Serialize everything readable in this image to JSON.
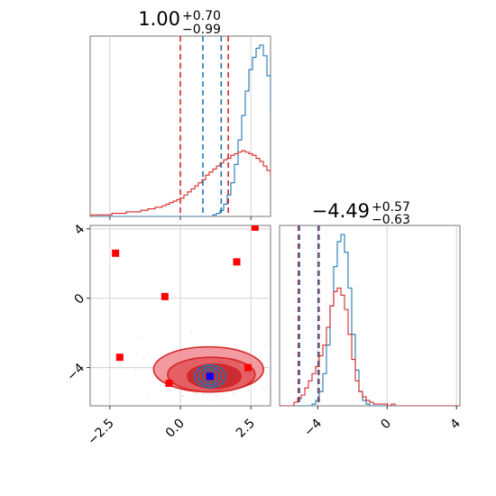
{
  "chart_data": [
    {
      "type": "histogram",
      "panel": "marginal-x",
      "title_base": "1.00",
      "title_plus": "+0.70",
      "title_minus": "−0.99",
      "xlim": [
        -3.2,
        3.2
      ],
      "grid": true,
      "bins": {
        "start": -3.2,
        "width": 0.128
      },
      "series": [
        {
          "color": "#1f77b4",
          "counts": [
            0,
            0,
            0,
            0,
            0,
            0,
            0,
            0,
            0,
            0,
            0,
            0,
            0,
            0,
            0,
            0,
            0,
            0,
            0,
            0,
            0,
            0,
            0,
            0,
            0,
            0,
            0,
            0,
            0,
            0,
            0,
            0,
            0,
            0,
            1,
            2,
            4,
            8,
            14,
            22,
            34,
            50,
            66,
            82,
            96,
            104,
            110,
            112,
            105,
            92,
            70,
            48,
            30,
            16,
            8,
            4,
            2,
            1,
            0,
            0,
            0,
            0,
            0,
            0,
            0,
            0,
            0,
            0,
            0,
            0,
            0,
            0,
            0,
            0,
            0,
            0,
            0,
            0,
            0,
            0,
            0,
            0,
            0,
            0,
            0,
            0,
            0,
            0,
            0,
            0,
            0,
            0,
            0,
            0,
            0,
            0,
            0,
            0,
            0,
            0
          ]
        },
        {
          "color": "#d62728",
          "counts": [
            1,
            1,
            1,
            1,
            1,
            1,
            2,
            2,
            2,
            2,
            3,
            3,
            3,
            3,
            4,
            4,
            5,
            5,
            6,
            6,
            7,
            8,
            9,
            10,
            11,
            12,
            14,
            16,
            18,
            20,
            22,
            24,
            27,
            29,
            31,
            33,
            35,
            37,
            38,
            40,
            41,
            42,
            43,
            42,
            41,
            40,
            38,
            36,
            33,
            30,
            26,
            22,
            18,
            14,
            11,
            8,
            6,
            5,
            4,
            3,
            2,
            2,
            2,
            1,
            1,
            1,
            1,
            0,
            0,
            0,
            0,
            0,
            0,
            0,
            0,
            0,
            0,
            0,
            0,
            0,
            0,
            0,
            0,
            0,
            0,
            0,
            0,
            0,
            0,
            0,
            0,
            0,
            0,
            0,
            0,
            0,
            0,
            0,
            0,
            0
          ]
        }
      ],
      "quantile_lines": [
        {
          "value": 0.0,
          "color": "#d62728"
        },
        {
          "value": 1.7,
          "color": "#d62728"
        },
        {
          "value": 0.8,
          "color": "#1f77b4"
        },
        {
          "value": 1.45,
          "color": "#1f77b4"
        }
      ]
    },
    {
      "type": "contour-scatter",
      "panel": "joint",
      "xlim": [
        -3.2,
        3.2
      ],
      "ylim": [
        -6.2,
        4.2
      ],
      "grid": true,
      "xticks": [
        "−2.5",
        "0.0",
        "2.5"
      ],
      "yticks": [
        "−4",
        "0",
        "4"
      ],
      "xtick_values": [
        -2.5,
        0.0,
        2.5
      ],
      "ytick_values": [
        -4,
        0,
        4
      ],
      "red_contours": [
        {
          "cx": 1.0,
          "cy": -4.1,
          "rx": 1.95,
          "ry": 1.3
        },
        {
          "cx": 1.1,
          "cy": -4.4,
          "rx": 1.55,
          "ry": 1.0
        },
        {
          "cx": 1.2,
          "cy": -4.5,
          "rx": 0.95,
          "ry": 0.7
        }
      ],
      "blue_contours": [
        {
          "cx": 1.05,
          "cy": -4.5,
          "rx": 0.55,
          "ry": 0.65
        },
        {
          "cx": 1.05,
          "cy": -4.5,
          "rx": 0.4,
          "ry": 0.5
        },
        {
          "cx": 1.05,
          "cy": -4.5,
          "rx": 0.25,
          "ry": 0.35
        }
      ],
      "red_points": [
        {
          "x": -2.3,
          "y": 2.6
        },
        {
          "x": 2.0,
          "y": 2.1
        },
        {
          "x": 2.65,
          "y": 4.1
        },
        {
          "x": -0.55,
          "y": 0.1
        },
        {
          "x": -2.15,
          "y": -3.4
        },
        {
          "x": -0.4,
          "y": -4.9
        },
        {
          "x": 2.4,
          "y": -4.0
        }
      ],
      "blue_points": [
        {
          "x": 1.05,
          "y": -4.5
        }
      ]
    },
    {
      "type": "histogram",
      "panel": "marginal-y",
      "title_base": "−4.49",
      "title_plus": "+0.57",
      "title_minus": "−0.63",
      "xlim": [
        -6.2,
        4.2
      ],
      "grid": true,
      "xticks": [
        "−4",
        "0",
        "4"
      ],
      "xtick_values": [
        -4,
        0,
        4
      ],
      "bins": {
        "start": -6.2,
        "width": 0.208
      },
      "series": [
        {
          "color": "#1f77b4",
          "counts": [
            0,
            0,
            0,
            0,
            0,
            0,
            0,
            0,
            0,
            1,
            3,
            8,
            18,
            34,
            56,
            78,
            92,
            96,
            86,
            66,
            40,
            20,
            8,
            3,
            1,
            0,
            0,
            0,
            0,
            0,
            0,
            0,
            0,
            0,
            0,
            0,
            0,
            0,
            0,
            0,
            0,
            0,
            0,
            0,
            0,
            0,
            0,
            0,
            0,
            0
          ]
        },
        {
          "color": "#d62728",
          "counts": [
            0,
            0,
            0,
            0,
            2,
            4,
            6,
            10,
            14,
            18,
            22,
            28,
            34,
            44,
            56,
            64,
            66,
            62,
            54,
            40,
            26,
            14,
            8,
            5,
            3,
            2,
            1,
            1,
            1,
            1,
            0,
            1,
            0,
            0,
            0,
            0,
            0,
            0,
            0,
            0,
            0,
            0,
            0,
            0,
            0,
            0,
            0,
            0,
            0,
            0
          ]
        }
      ],
      "quantile_lines": [
        {
          "value": -5.12,
          "color": "#d62728"
        },
        {
          "value": -3.92,
          "color": "#d62728"
        },
        {
          "value": -5.05,
          "color": "#1f77b4"
        },
        {
          "value": -3.98,
          "color": "#1f77b4"
        }
      ]
    }
  ]
}
